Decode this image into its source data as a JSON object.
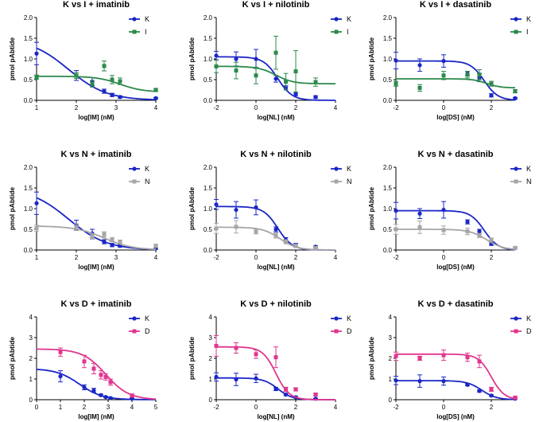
{
  "colors": {
    "K": "#1a26c6",
    "I": "#2b8a4a",
    "N": "#a6a6a6",
    "D": "#e0368e"
  },
  "chart_data": [
    {
      "type": "scatter",
      "title": "K vs I + imatinib",
      "xlabel": "log[IM] (nM)",
      "ylabel": "pmol pAbtide",
      "xlim": [
        1,
        4
      ],
      "ylim": [
        0,
        2
      ],
      "xticks": [
        "1",
        "2",
        "3",
        "4"
      ],
      "yticks": [
        "0.0",
        "0.5",
        "1.0",
        "1.5",
        "2.0"
      ],
      "series": [
        {
          "name": "K",
          "color_key": "K",
          "x": [
            1,
            2,
            2.4,
            2.7,
            2.9,
            3.1,
            4
          ],
          "y": [
            1.13,
            0.6,
            0.45,
            0.22,
            0.13,
            0.08,
            0.05
          ],
          "err": [
            0.27,
            0.12,
            0.1,
            0.05,
            0.04,
            0.03,
            0.02
          ],
          "fit": {
            "top": 1.5,
            "bottom": 0,
            "logec50": 1.8,
            "hill": -0.9
          }
        },
        {
          "name": "I",
          "color_key": "I",
          "x": [
            1,
            2,
            2.4,
            2.7,
            2.9,
            3.1,
            4
          ],
          "y": [
            0.56,
            0.6,
            0.4,
            0.83,
            0.5,
            0.46,
            0.25
          ],
          "err": [
            0.05,
            0.07,
            0.08,
            0.12,
            0.1,
            0.08,
            0.04
          ],
          "fit": {
            "top": 0.58,
            "bottom": 0.2,
            "logec50": 3.1,
            "hill": -1.5
          }
        }
      ]
    },
    {
      "type": "scatter",
      "title": "K vs I + nilotinib",
      "xlabel": "log[NL] (nM)",
      "ylabel": "pmol pAbtide",
      "xlim": [
        -2,
        4
      ],
      "ylim": [
        0,
        2
      ],
      "xticks": [
        "-2",
        "0",
        "2",
        "4"
      ],
      "yticks": [
        "0.0",
        "0.5",
        "1.0",
        "1.5",
        "2.0"
      ],
      "series": [
        {
          "name": "K",
          "color_key": "K",
          "x": [
            -2,
            -1,
            0,
            1,
            1.5,
            2,
            3
          ],
          "y": [
            1.08,
            1.0,
            1.0,
            0.52,
            0.3,
            0.15,
            0.08
          ],
          "err": [
            0.1,
            0.17,
            0.23,
            0.08,
            0.05,
            0.04,
            0.03
          ],
          "fit": {
            "top": 1.05,
            "bottom": 0,
            "logec50": 1.1,
            "hill": -1.2
          }
        },
        {
          "name": "I",
          "color_key": "I",
          "x": [
            -2,
            -1,
            0,
            1,
            1.5,
            2,
            3
          ],
          "y": [
            0.82,
            0.72,
            0.6,
            1.15,
            0.45,
            0.7,
            0.44
          ],
          "err": [
            0.15,
            0.2,
            0.2,
            0.4,
            0.2,
            0.5,
            0.1
          ],
          "fit": {
            "top": 0.82,
            "bottom": 0.4,
            "logec50": 1.0,
            "hill": -1.0
          }
        }
      ]
    },
    {
      "type": "scatter",
      "title": "K vs I + dasatinib",
      "xlabel": "log[DS] (nM)",
      "ylabel": "pmol pAbtide",
      "xlim": [
        -2,
        3
      ],
      "ylim": [
        0,
        2
      ],
      "xticks": [
        "-2",
        "0",
        "2"
      ],
      "yticks": [
        "0.0",
        "0.5",
        "1.0",
        "1.5",
        "2.0"
      ],
      "series": [
        {
          "name": "K",
          "color_key": "K",
          "x": [
            -2,
            -1,
            0,
            1,
            1.5,
            2,
            3
          ],
          "y": [
            0.96,
            0.85,
            0.95,
            0.65,
            0.55,
            0.12,
            0.05
          ],
          "err": [
            0.2,
            0.15,
            0.15,
            0.05,
            0.1,
            0.04,
            0.02
          ],
          "fit": {
            "top": 0.95,
            "bottom": 0,
            "logec50": 1.7,
            "hill": -1.5
          }
        },
        {
          "name": "I",
          "color_key": "I",
          "x": [
            -2,
            -1,
            0,
            1,
            1.5,
            2,
            3
          ],
          "y": [
            0.4,
            0.3,
            0.6,
            0.62,
            0.62,
            0.4,
            0.22
          ],
          "err": [
            0.06,
            0.08,
            0.1,
            0.08,
            0.12,
            0.06,
            0.04
          ],
          "fit": {
            "top": 0.52,
            "bottom": 0.3,
            "logec50": 1.8,
            "hill": -1.5
          }
        }
      ]
    },
    {
      "type": "scatter",
      "title": "K vs N + imatinib",
      "xlabel": "log[IM] (nM)",
      "ylabel": "pmol pAbtide",
      "xlim": [
        1,
        4
      ],
      "ylim": [
        0,
        2
      ],
      "xticks": [
        "1",
        "2",
        "3",
        "4"
      ],
      "yticks": [
        "0.0",
        "0.5",
        "1.0",
        "1.5",
        "2.0"
      ],
      "series": [
        {
          "name": "K",
          "color_key": "K",
          "x": [
            1,
            2,
            2.4,
            2.7,
            2.9,
            3.1,
            4
          ],
          "y": [
            1.13,
            0.6,
            0.4,
            0.2,
            0.12,
            0.1,
            0.04
          ],
          "err": [
            0.27,
            0.12,
            0.1,
            0.05,
            0.04,
            0.03,
            0.02
          ],
          "fit": {
            "top": 1.5,
            "bottom": 0,
            "logec50": 1.8,
            "hill": -0.9
          }
        },
        {
          "name": "N",
          "color_key": "N",
          "x": [
            1,
            2,
            2.4,
            2.7,
            2.9,
            3.1,
            4
          ],
          "y": [
            0.53,
            0.55,
            0.32,
            0.38,
            0.25,
            0.2,
            0.1
          ],
          "err": [
            0.07,
            0.08,
            0.06,
            0.06,
            0.05,
            0.04,
            0.04
          ],
          "fit": {
            "top": 0.58,
            "bottom": 0,
            "logec50": 2.7,
            "hill": -1.2
          }
        }
      ]
    },
    {
      "type": "scatter",
      "title": "K vs N + nilotinib",
      "xlabel": "log[NL] (nM)",
      "ylabel": "pmol pAbtide",
      "xlim": [
        -2,
        4
      ],
      "ylim": [
        0,
        2
      ],
      "xticks": [
        "-2",
        "0",
        "2",
        "4"
      ],
      "yticks": [
        "0.0",
        "0.5",
        "1.0",
        "1.5",
        "2.0"
      ],
      "series": [
        {
          "name": "K",
          "color_key": "K",
          "x": [
            -2,
            -1,
            0,
            1,
            1.5,
            2,
            3
          ],
          "y": [
            1.1,
            0.97,
            1.03,
            0.5,
            0.25,
            0.12,
            0.08
          ],
          "err": [
            0.12,
            0.2,
            0.18,
            0.06,
            0.05,
            0.04,
            0.02
          ],
          "fit": {
            "top": 1.05,
            "bottom": 0,
            "logec50": 1.1,
            "hill": -1.2
          }
        },
        {
          "name": "N",
          "color_key": "N",
          "x": [
            -2,
            -1,
            0,
            1,
            1.5,
            2,
            3
          ],
          "y": [
            0.52,
            0.56,
            0.45,
            0.35,
            0.2,
            0.1,
            0.05
          ],
          "err": [
            0.12,
            0.15,
            0.06,
            0.06,
            0.05,
            0.04,
            0.02
          ],
          "fit": {
            "top": 0.55,
            "bottom": 0,
            "logec50": 1.2,
            "hill": -1.0
          }
        }
      ]
    },
    {
      "type": "scatter",
      "title": "K vs N + dasatinib",
      "xlabel": "log[DS] (nM)",
      "ylabel": "pmol pAbtide",
      "xlim": [
        -2,
        3
      ],
      "ylim": [
        0,
        2
      ],
      "xticks": [
        "-2",
        "0",
        "2"
      ],
      "yticks": [
        "0.0",
        "0.5",
        "1.0",
        "1.5",
        "2.0"
      ],
      "series": [
        {
          "name": "K",
          "color_key": "K",
          "x": [
            -2,
            -1,
            0,
            1,
            1.5,
            2,
            3
          ],
          "y": [
            0.95,
            0.88,
            0.97,
            0.68,
            0.45,
            0.15,
            0.05
          ],
          "err": [
            0.2,
            0.12,
            0.2,
            0.05,
            0.05,
            0.04,
            0.02
          ],
          "fit": {
            "top": 0.95,
            "bottom": 0,
            "logec50": 1.7,
            "hill": -1.5
          }
        },
        {
          "name": "N",
          "color_key": "N",
          "x": [
            -2,
            -1,
            0,
            1,
            1.5,
            2,
            3
          ],
          "y": [
            0.5,
            0.55,
            0.48,
            0.45,
            0.35,
            0.25,
            0.05
          ],
          "err": [
            0.12,
            0.15,
            0.1,
            0.08,
            0.05,
            0.04,
            0.02
          ],
          "fit": {
            "top": 0.5,
            "bottom": 0,
            "logec50": 1.8,
            "hill": -1.2
          }
        }
      ]
    },
    {
      "type": "scatter",
      "title": "K vs D + imatinib",
      "xlabel": "log[IM] (nM)",
      "ylabel": "pmol pAbtide",
      "xlim": [
        0,
        5
      ],
      "ylim": [
        0,
        4
      ],
      "xticks": [
        "0",
        "1",
        "2",
        "3",
        "4",
        "5"
      ],
      "yticks": [
        "0",
        "1",
        "2",
        "3",
        "4"
      ],
      "series": [
        {
          "name": "K",
          "color_key": "K",
          "x": [
            1,
            2,
            2.4,
            2.7,
            2.9,
            3.1,
            4
          ],
          "y": [
            1.13,
            0.6,
            0.45,
            0.22,
            0.13,
            0.08,
            0.05
          ],
          "err": [
            0.27,
            0.12,
            0.1,
            0.05,
            0.04,
            0.03,
            0.02
          ],
          "fit": {
            "top": 1.5,
            "bottom": 0,
            "logec50": 1.8,
            "hill": -0.9
          }
        },
        {
          "name": "D",
          "color_key": "D",
          "x": [
            1,
            2,
            2.4,
            2.7,
            2.9,
            3.1,
            4
          ],
          "y": [
            2.3,
            1.85,
            1.5,
            1.2,
            1.1,
            0.85,
            0.2
          ],
          "err": [
            0.2,
            0.3,
            0.25,
            0.2,
            0.15,
            0.15,
            0.08
          ],
          "fit": {
            "top": 2.45,
            "bottom": 0,
            "logec50": 2.9,
            "hill": -0.9
          }
        }
      ]
    },
    {
      "type": "scatter",
      "title": "K vs D + nilotinib",
      "xlabel": "log[NL] (nM)",
      "ylabel": "pmol pAbtide",
      "xlim": [
        -2,
        4
      ],
      "ylim": [
        0,
        4
      ],
      "xticks": [
        "-2",
        "0",
        "2",
        "4"
      ],
      "yticks": [
        "0",
        "1",
        "2",
        "3",
        "4"
      ],
      "series": [
        {
          "name": "K",
          "color_key": "K",
          "x": [
            -2,
            -1,
            0,
            1,
            1.5,
            2,
            3
          ],
          "y": [
            1.1,
            0.98,
            1.03,
            0.52,
            0.25,
            0.12,
            0.05
          ],
          "err": [
            0.2,
            0.3,
            0.2,
            0.08,
            0.05,
            0.04,
            0.02
          ],
          "fit": {
            "top": 1.05,
            "bottom": 0,
            "logec50": 1.1,
            "hill": -1.2
          }
        },
        {
          "name": "D",
          "color_key": "D",
          "x": [
            -2,
            -1,
            0,
            1,
            1.5,
            2,
            3
          ],
          "y": [
            2.6,
            2.5,
            2.2,
            2.05,
            0.5,
            0.5,
            0.25
          ],
          "err": [
            0.5,
            0.25,
            0.2,
            0.5,
            0.1,
            0.08,
            0.05
          ],
          "fit": {
            "top": 2.55,
            "bottom": 0,
            "logec50": 1.0,
            "hill": -1.3
          }
        }
      ]
    },
    {
      "type": "scatter",
      "title": "K vs D + dasatinib",
      "xlabel": "log[DS] (nM)",
      "ylabel": "pmol pAbtide",
      "xlim": [
        -2,
        3
      ],
      "ylim": [
        0,
        4
      ],
      "xticks": [
        "-2",
        "0",
        "2"
      ],
      "yticks": [
        "0",
        "1",
        "2",
        "3",
        "4"
      ],
      "series": [
        {
          "name": "K",
          "color_key": "K",
          "x": [
            -2,
            -1,
            0,
            1,
            1.5,
            2,
            3
          ],
          "y": [
            0.93,
            0.9,
            0.9,
            0.72,
            0.42,
            0.2,
            0.05
          ],
          "err": [
            0.2,
            0.3,
            0.2,
            0.05,
            0.05,
            0.04,
            0.02
          ],
          "fit": {
            "top": 0.92,
            "bottom": 0,
            "logec50": 1.6,
            "hill": -1.4
          }
        },
        {
          "name": "D",
          "color_key": "D",
          "x": [
            -2,
            -1,
            0,
            1,
            1.5,
            2,
            3
          ],
          "y": [
            2.1,
            2.0,
            2.15,
            2.05,
            1.85,
            0.5,
            0.1
          ],
          "err": [
            0.2,
            0.1,
            0.25,
            0.2,
            0.3,
            0.1,
            0.05
          ],
          "fit": {
            "top": 2.2,
            "bottom": 0,
            "logec50": 2.0,
            "hill": -1.6
          }
        }
      ]
    }
  ]
}
